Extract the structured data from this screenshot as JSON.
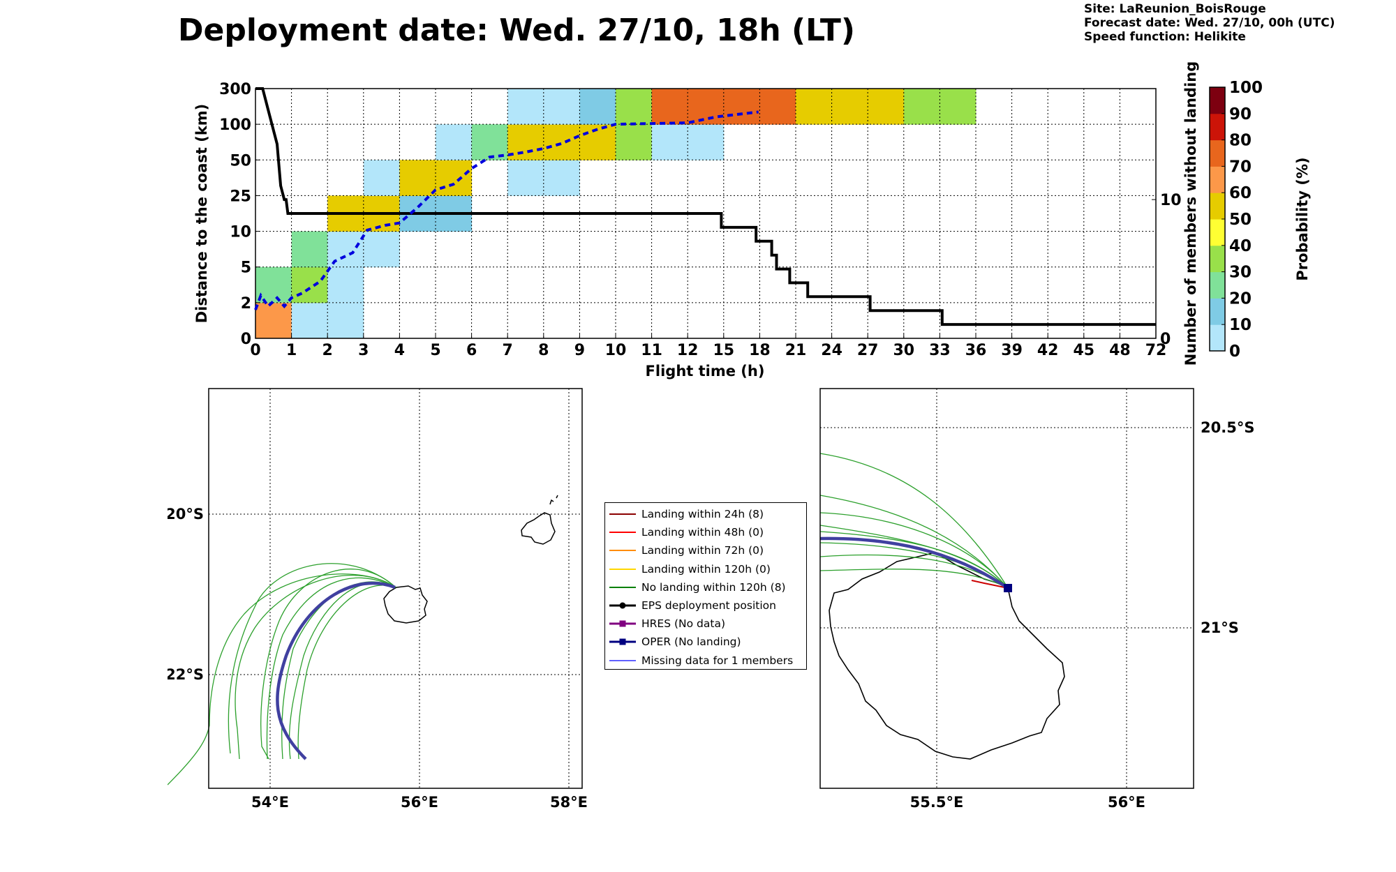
{
  "title": "Deployment date: Wed. 27/10, 18h (LT)",
  "info": [
    "Site: LaReunion_BoisRouge",
    "Forecast date: Wed. 27/10, 00h (UTC)",
    "Speed function: Helikite"
  ],
  "colorbar": {
    "label": "Probability (%)",
    "ticks": [
      "0",
      "10",
      "20",
      "30",
      "40",
      "50",
      "60",
      "70",
      "80",
      "90",
      "100"
    ],
    "colors": [
      "#b3e6fa",
      "#7fcbe5",
      "#80e199",
      "#99e04a",
      "#ffff33",
      "#e6cc00",
      "#fc9849",
      "#e8661d",
      "#cc1408",
      "#7d0010"
    ]
  },
  "chart_data": [
    {
      "type": "heatmap",
      "xlabel": "Flight time (h)",
      "ylabel": "Distance to the coast (km)",
      "y2label": "Number of members without landing",
      "x_ticks": [
        "0",
        "1",
        "2",
        "3",
        "4",
        "5",
        "6",
        "7",
        "8",
        "9",
        "10",
        "11",
        "12",
        "15",
        "18",
        "21",
        "24",
        "27",
        "30",
        "33",
        "36",
        "39",
        "42",
        "45",
        "48",
        "72"
      ],
      "y_ticks": [
        "0",
        "2",
        "5",
        "10",
        "25",
        "50",
        "100",
        "300"
      ],
      "y2_ticks": [
        "0",
        "10"
      ],
      "y2_range": [
        0,
        18
      ],
      "cells": [
        {
          "x": 0,
          "y": 0,
          "c": 6
        },
        {
          "x": 0,
          "y": 1,
          "c": 2
        },
        {
          "x": 1,
          "y": 0,
          "c": 0
        },
        {
          "x": 1,
          "y": 1,
          "c": 3
        },
        {
          "x": 1,
          "y": 2,
          "c": 2
        },
        {
          "x": 2,
          "y": 0,
          "c": 0
        },
        {
          "x": 2,
          "y": 1,
          "c": 0
        },
        {
          "x": 2,
          "y": 2,
          "c": 0
        },
        {
          "x": 2,
          "y": 3,
          "c": 5
        },
        {
          "x": 3,
          "y": 2,
          "c": 0
        },
        {
          "x": 3,
          "y": 3,
          "c": 5
        },
        {
          "x": 3,
          "y": 4,
          "c": 0
        },
        {
          "x": 4,
          "y": 3,
          "c": 1
        },
        {
          "x": 4,
          "y": 4,
          "c": 5
        },
        {
          "x": 5,
          "y": 3,
          "c": 1
        },
        {
          "x": 5,
          "y": 4,
          "c": 5
        },
        {
          "x": 5,
          "y": 5,
          "c": 0
        },
        {
          "x": 6,
          "y": 5,
          "c": 2
        },
        {
          "x": 7,
          "y": 4,
          "c": 0
        },
        {
          "x": 7,
          "y": 5,
          "c": 5
        },
        {
          "x": 7,
          "y": 6,
          "c": 0
        },
        {
          "x": 8,
          "y": 4,
          "c": 0
        },
        {
          "x": 8,
          "y": 5,
          "c": 5
        },
        {
          "x": 8,
          "y": 6,
          "c": 0
        },
        {
          "x": 9,
          "y": 5,
          "c": 5
        },
        {
          "x": 9,
          "y": 6,
          "c": 1
        },
        {
          "x": 10,
          "y": 5,
          "c": 3
        },
        {
          "x": 10,
          "y": 6,
          "c": 3
        },
        {
          "x": 11,
          "y": 5,
          "c": 0
        },
        {
          "x": 11,
          "y": 6,
          "c": 7
        },
        {
          "x": 12,
          "y": 5,
          "c": 0
        },
        {
          "x": 12,
          "y": 6,
          "c": 7
        },
        {
          "x": 13,
          "y": 6,
          "c": 7
        },
        {
          "x": 14,
          "y": 6,
          "c": 7
        },
        {
          "x": 15,
          "y": 6,
          "c": 5
        },
        {
          "x": 16,
          "y": 6,
          "c": 5
        },
        {
          "x": 17,
          "y": 6,
          "c": 5
        },
        {
          "x": 18,
          "y": 6,
          "c": 3
        },
        {
          "x": 19,
          "y": 6,
          "c": 3
        }
      ],
      "members_without_landing": [
        [
          0,
          18
        ],
        [
          0.2,
          18
        ],
        [
          0.4,
          16
        ],
        [
          0.6,
          14
        ],
        [
          0.7,
          11
        ],
        [
          0.8,
          10
        ],
        [
          0.85,
          10
        ],
        [
          0.9,
          9
        ],
        [
          1,
          9
        ],
        [
          14.8,
          9
        ],
        [
          14.8,
          8
        ],
        [
          17.7,
          8
        ],
        [
          17.7,
          7
        ],
        [
          19.0,
          7
        ],
        [
          19.0,
          6
        ],
        [
          19.4,
          6
        ],
        [
          19.4,
          5
        ],
        [
          20.5,
          5
        ],
        [
          20.5,
          4
        ],
        [
          22.0,
          4
        ],
        [
          22.0,
          3
        ],
        [
          27.2,
          3
        ],
        [
          27.2,
          2
        ],
        [
          33.2,
          2
        ],
        [
          33.2,
          1
        ],
        [
          72,
          1
        ]
      ],
      "median_distance": [
        [
          0,
          1.6
        ],
        [
          0.15,
          2.6
        ],
        [
          0.35,
          1.8
        ],
        [
          0.6,
          2.4
        ],
        [
          0.8,
          1.8
        ],
        [
          1,
          2.4
        ],
        [
          1.3,
          2.8
        ],
        [
          1.8,
          3.8
        ],
        [
          2.2,
          5.8
        ],
        [
          2.7,
          7.0
        ],
        [
          3.1,
          10.5
        ],
        [
          3.6,
          12.5
        ],
        [
          4.0,
          13.5
        ],
        [
          4.5,
          20
        ],
        [
          5.0,
          29
        ],
        [
          5.5,
          33
        ],
        [
          6.0,
          44
        ],
        [
          6.5,
          54
        ],
        [
          7.0,
          57
        ],
        [
          7.5,
          61
        ],
        [
          8.0,
          66
        ],
        [
          8.5,
          73
        ],
        [
          9.0,
          84
        ],
        [
          9.5,
          93
        ],
        [
          10.0,
          100
        ],
        [
          10.5,
          102
        ],
        [
          11.0,
          104
        ],
        [
          12.0,
          108
        ],
        [
          14.4,
          142
        ],
        [
          17.9,
          169
        ]
      ]
    },
    {
      "type": "map",
      "lon_ticks": [
        "54°E",
        "56°E",
        "58°E"
      ],
      "lat_ticks": [
        "20°S",
        "22°S"
      ],
      "lon_range": [
        53.2,
        58.2
      ],
      "lat_range": [
        -23.4,
        -18.4
      ]
    },
    {
      "type": "map",
      "lon_ticks": [
        "55.5°E",
        "56°E"
      ],
      "lat_ticks": [
        "20.5°S",
        "21°S"
      ],
      "lon_range": [
        55.2,
        56.2
      ],
      "lat_range": [
        -21.4,
        -20.4
      ]
    }
  ],
  "legend": [
    {
      "label": "Landing within 24h (8)",
      "color": "#8b0000",
      "marker": "line"
    },
    {
      "label": "Landing within 48h (0)",
      "color": "#ff0000",
      "marker": "line"
    },
    {
      "label": "Landing within 72h (0)",
      "color": "#ff8c00",
      "marker": "line"
    },
    {
      "label": "Landing within 120h (0)",
      "color": "#ffd700",
      "marker": "line"
    },
    {
      "label": "No landing within 120h (8)",
      "color": "#008000",
      "marker": "line"
    },
    {
      "label": "EPS deployment position",
      "color": "#000000",
      "marker": "circle"
    },
    {
      "label": "HRES (No data)",
      "color": "#800080",
      "marker": "square"
    },
    {
      "label": "OPER (No landing)",
      "color": "#000080",
      "marker": "square"
    },
    {
      "label": "Missing data for 1 members",
      "color": "#0000ff",
      "marker": "line"
    }
  ]
}
